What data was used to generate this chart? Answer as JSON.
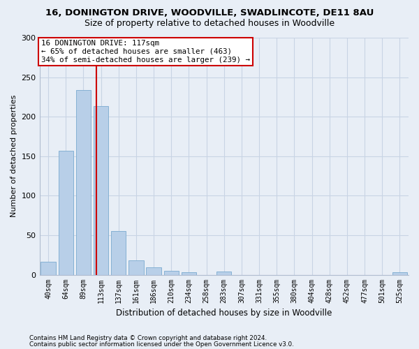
{
  "title1": "16, DONINGTON DRIVE, WOODVILLE, SWADLINCOTE, DE11 8AU",
  "title2": "Size of property relative to detached houses in Woodville",
  "xlabel": "Distribution of detached houses by size in Woodville",
  "ylabel": "Number of detached properties",
  "categories": [
    "40sqm",
    "64sqm",
    "89sqm",
    "113sqm",
    "137sqm",
    "161sqm",
    "186sqm",
    "210sqm",
    "234sqm",
    "258sqm",
    "283sqm",
    "307sqm",
    "331sqm",
    "355sqm",
    "380sqm",
    "404sqm",
    "428sqm",
    "452sqm",
    "477sqm",
    "501sqm",
    "525sqm"
  ],
  "values": [
    16,
    157,
    234,
    213,
    55,
    18,
    9,
    5,
    3,
    0,
    4,
    0,
    0,
    0,
    0,
    0,
    0,
    0,
    0,
    0,
    3
  ],
  "bar_color": "#b8cfe8",
  "bar_edge_color": "#7aaad0",
  "grid_color": "#c8d4e4",
  "bg_color": "#e8eef6",
  "vline_x": 2.73,
  "vline_color": "#cc0000",
  "annotation_text": "16 DONINGTON DRIVE: 117sqm\n← 65% of detached houses are smaller (463)\n34% of semi-detached houses are larger (239) →",
  "annotation_box_color": "#ffffff",
  "annotation_box_edge": "#cc0000",
  "footer1": "Contains HM Land Registry data © Crown copyright and database right 2024.",
  "footer2": "Contains public sector information licensed under the Open Government Licence v3.0.",
  "ylim": [
    0,
    300
  ],
  "yticks": [
    0,
    50,
    100,
    150,
    200,
    250,
    300
  ],
  "title1_fontsize": 9.5,
  "title2_fontsize": 9,
  "annot_fontsize": 7.8
}
